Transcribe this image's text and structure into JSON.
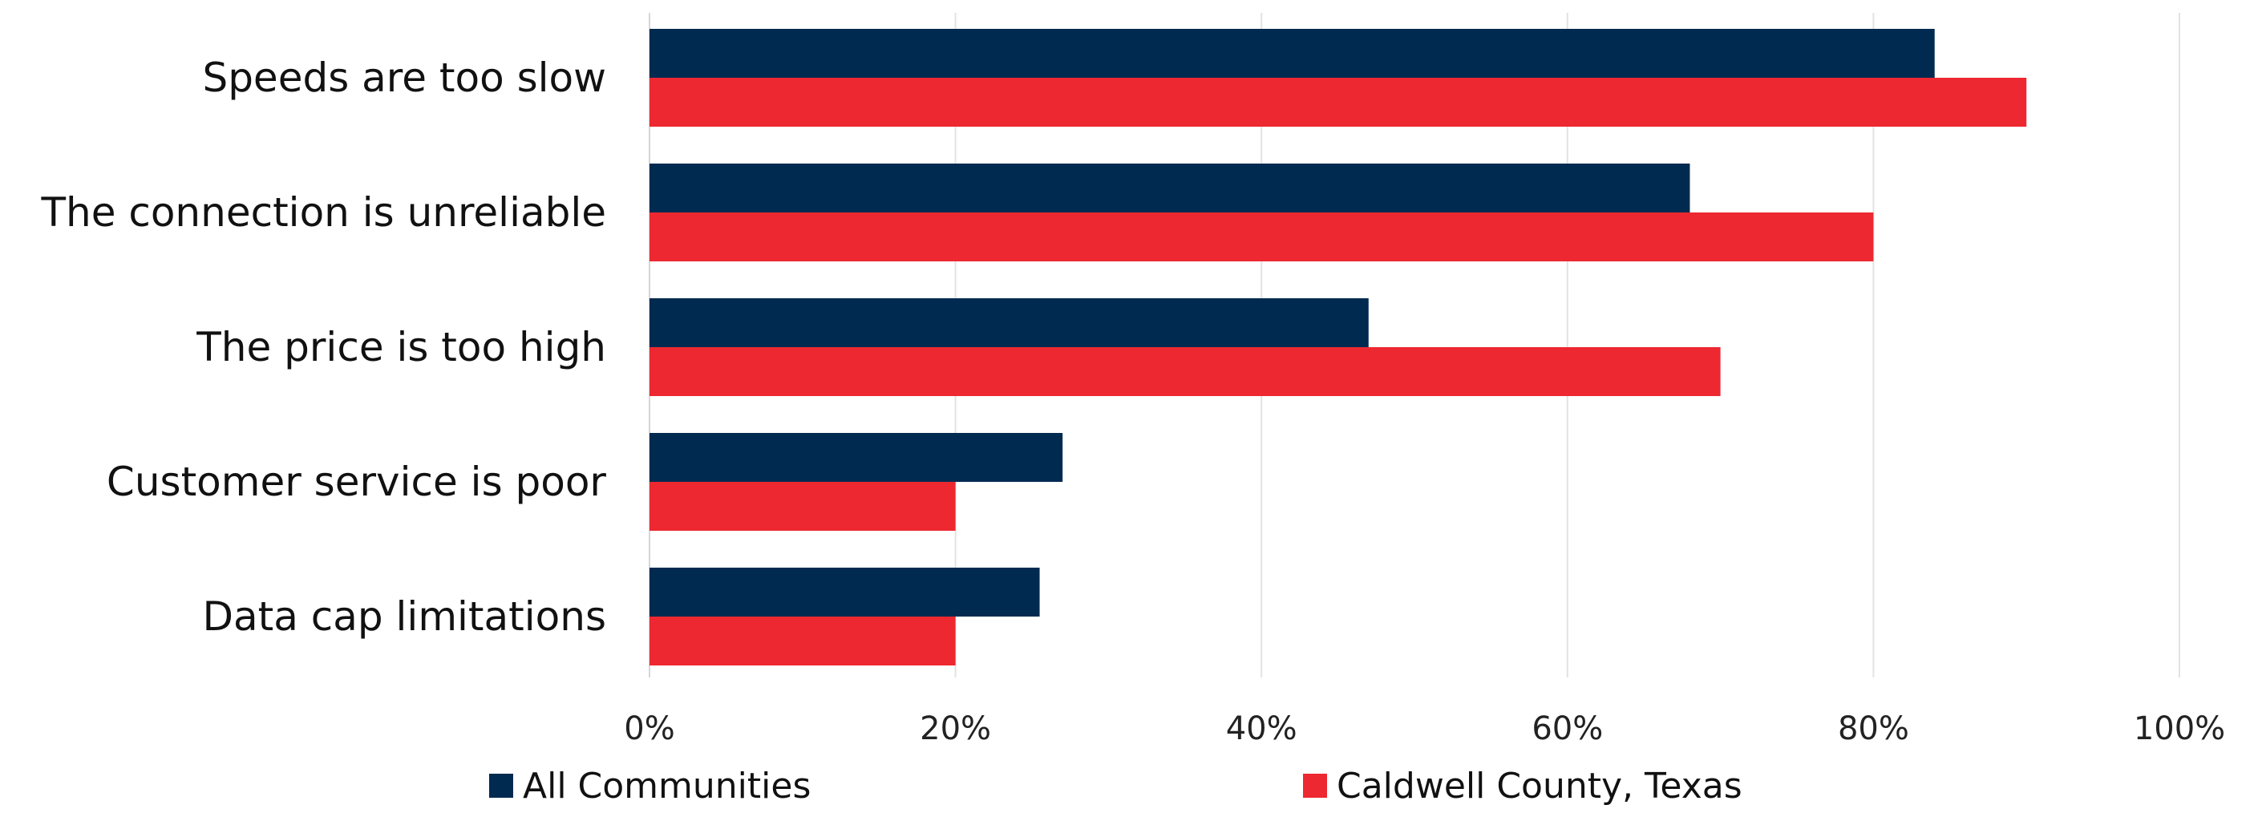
{
  "chart_data": {
    "type": "bar",
    "orientation": "horizontal",
    "categories": [
      "Speeds are too slow",
      "The connection is unreliable",
      "The price is too high",
      "Customer service is poor",
      "Data cap limitations"
    ],
    "series": [
      {
        "name": "All Communities",
        "color": "#012a50",
        "values": [
          84,
          68,
          47,
          27,
          25.5
        ]
      },
      {
        "name": "Caldwell County, Texas",
        "color": "#ed2830",
        "values": [
          90,
          80,
          70,
          20,
          20
        ]
      }
    ],
    "xlim": [
      0,
      100
    ],
    "x_ticks": [
      "0%",
      "20%",
      "40%",
      "60%",
      "80%",
      "100%"
    ],
    "grid": true,
    "legend_position": "bottom"
  }
}
